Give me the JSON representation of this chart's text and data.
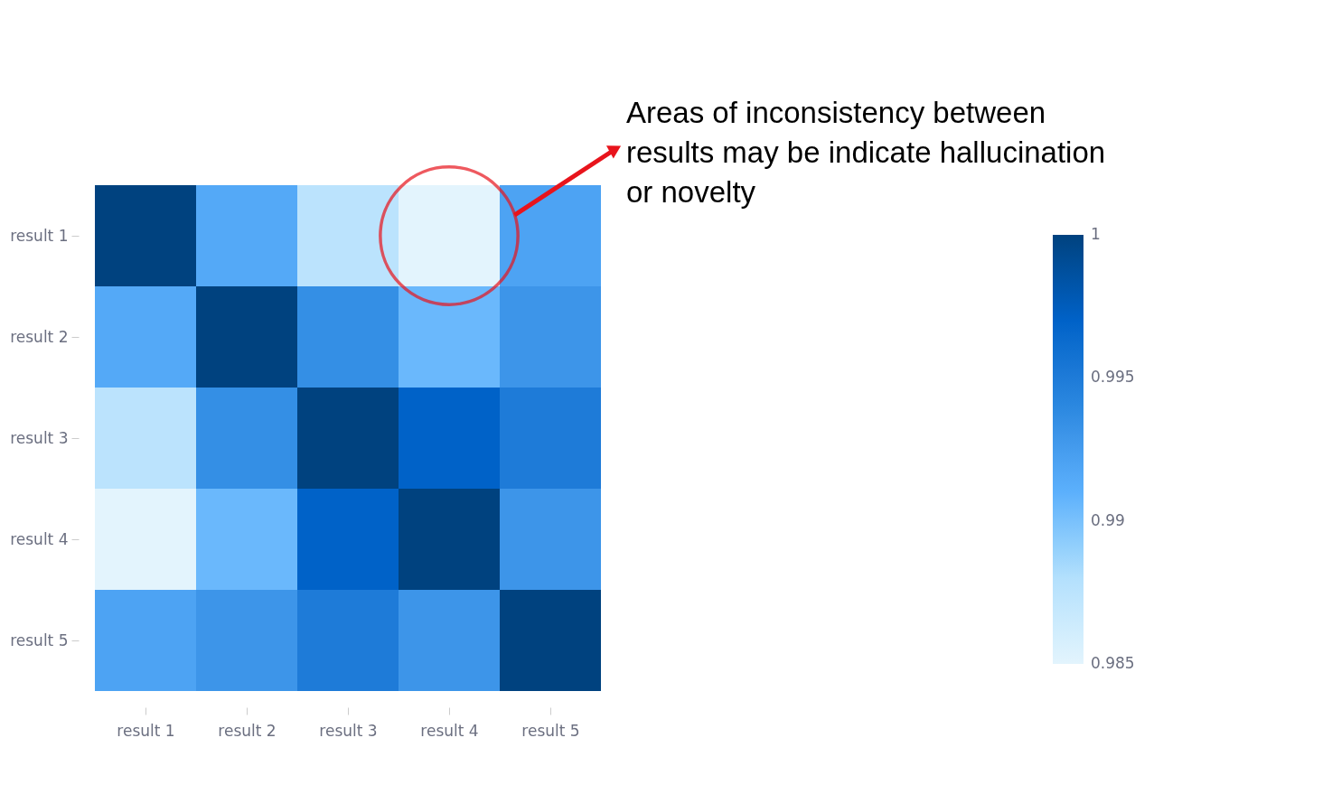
{
  "chart_data": {
    "type": "heatmap",
    "categories": [
      "result 1",
      "result 2",
      "result 3",
      "result 4",
      "result 5"
    ],
    "y_categories": [
      "result 1",
      "result 2",
      "result 3",
      "result 4",
      "result 5"
    ],
    "cells": [
      [
        1,
        0.9915,
        0.9875,
        0.985,
        0.992
      ],
      [
        0.9915,
        1,
        0.9935,
        0.9905,
        0.993
      ],
      [
        0.9875,
        0.9935,
        1,
        0.997,
        0.995
      ],
      [
        0.985,
        0.9905,
        0.997,
        1,
        0.993
      ],
      [
        0.992,
        0.993,
        0.995,
        0.993,
        1
      ]
    ],
    "clim": [
      0.985,
      1
    ],
    "cticks": [
      0.985,
      0.99,
      0.995,
      1
    ],
    "annotations": [
      "Areas of inconsistency between\nresults may be indicate hallucination\nor novelty"
    ]
  }
}
